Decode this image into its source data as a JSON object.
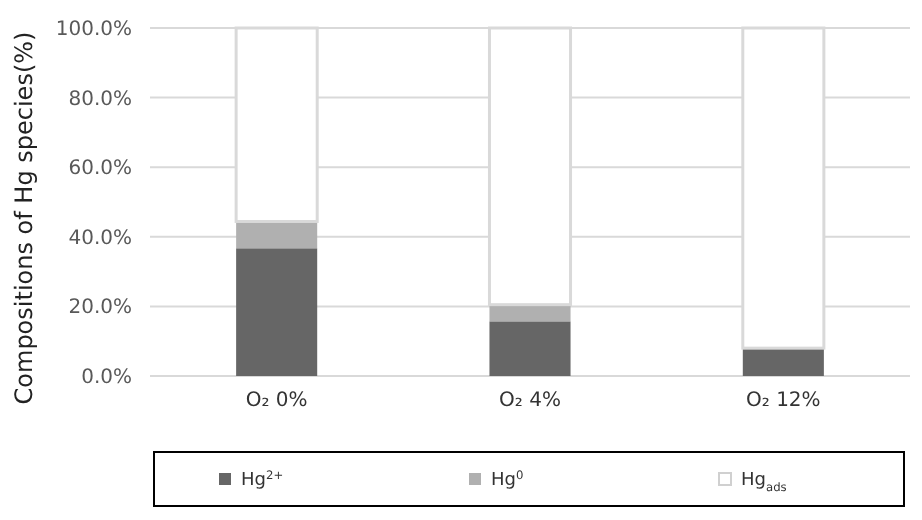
{
  "chart_data": {
    "type": "bar",
    "stacked": true,
    "ylabel": "Compositions of Hg species(%)",
    "categories": [
      "O₂  0%",
      "O₂  4%",
      "O₂  12%"
    ],
    "series": [
      {
        "name": "Hg$^{2+}$",
        "color": "#666666",
        "values": [
          36.7,
          15.7,
          8.0
        ]
      },
      {
        "name": "Hg$^{0}$",
        "color": "#b0b0b0",
        "values": [
          7.7,
          4.8,
          0
        ]
      },
      {
        "name": "Hg$_{ads}$",
        "color": "#ffffff",
        "values": [
          55.6,
          79.5,
          92.0
        ]
      }
    ],
    "ylim": [
      0,
      100
    ],
    "yticks": [
      {
        "value": 0,
        "label": "0.0%"
      },
      {
        "value": 20,
        "label": "20.0%"
      },
      {
        "value": 40,
        "label": "40.0%"
      },
      {
        "value": 60,
        "label": "60.0%"
      },
      {
        "value": 80,
        "label": "80.0%"
      },
      {
        "value": 100,
        "label": "100.0%"
      }
    ],
    "grid": "y",
    "legend": "bottom"
  }
}
